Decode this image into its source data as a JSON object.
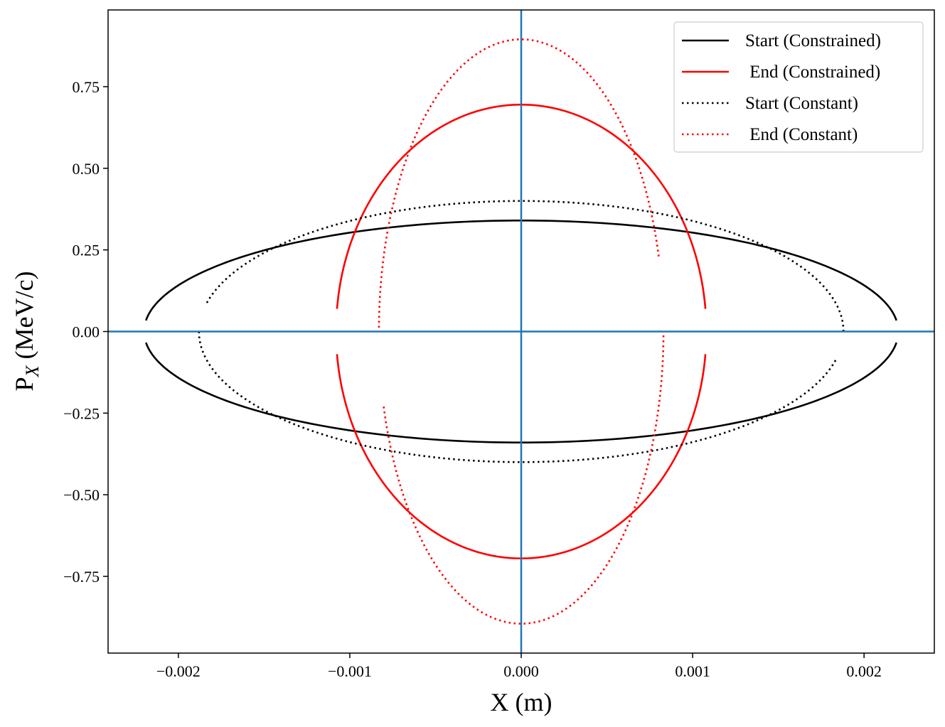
{
  "chart_data": {
    "type": "line",
    "title": "",
    "xlabel": "X (m)",
    "ylabel_main": "P",
    "ylabel_sub": "X",
    "ylabel_rest": " (MeV/c)",
    "xlim": [
      -0.00241,
      0.00241
    ],
    "ylim": [
      -0.985,
      0.985
    ],
    "x_ticks": [
      -0.002,
      -0.001,
      0.0,
      0.001,
      0.002
    ],
    "x_tick_labels": [
      "−0.002",
      "−0.001",
      "0.000",
      "0.001",
      "0.002"
    ],
    "y_ticks": [
      -0.75,
      -0.5,
      -0.25,
      0.0,
      0.25,
      0.5,
      0.75
    ],
    "y_tick_labels": [
      "−0.75",
      "−0.50",
      "−0.25",
      "0.00",
      "0.25",
      "0.50",
      "0.75"
    ],
    "grid": false,
    "legend_position": "top-right",
    "reference_lines": {
      "x": 0,
      "y": 0,
      "color": "#1f77b4"
    },
    "series": [
      {
        "name": "Start (Constrained)",
        "color": "#000000",
        "style": "solid",
        "ellipse": {
          "cx": 0.0,
          "cy": 0.0,
          "a": 0.0022,
          "b": 0.34,
          "tilt": 0.0
        },
        "arcs": [
          {
            "from": -0.1,
            "to": 0.1,
            "half": "upper"
          },
          {
            "from": -0.1,
            "to": 0.1,
            "half": "lower"
          }
        ],
        "values_summary": "x range -0.0022..0.0022, Px range -0.34..0.34"
      },
      {
        "name": " End (Constrained)",
        "color": "#ff0000",
        "style": "solid",
        "ellipse": {
          "cx": 0.0,
          "cy": 0.0,
          "a": 0.00108,
          "b": 0.695,
          "tilt": 0.0
        },
        "arcs": [
          {
            "from": -0.1,
            "to": 0.1,
            "half": "upper"
          },
          {
            "from": -0.1,
            "to": 0.1,
            "half": "lower"
          }
        ],
        "values_summary": "x range -0.00108..0.00108, Px range -0.695..0.695"
      },
      {
        "name": "Start (Constant)",
        "color": "#000000",
        "style": "dotted",
        "ellipse": {
          "cx": 0.0,
          "cy": 0.0,
          "a": 0.00188,
          "b": 0.4,
          "tilt": -0.1
        },
        "arcs": [
          {
            "from": 0.1,
            "to": 0.1,
            "half": "upper-tilted"
          },
          {
            "from": -0.1,
            "to": -0.1,
            "half": "lower-tilted"
          }
        ],
        "values_summary": "x range -0.00188..0.00188, Px range -0.4..0.4"
      },
      {
        "name": " End (Constant)",
        "color": "#ff0000",
        "style": "dotted",
        "ellipse": {
          "cx": 0.0,
          "cy": 0.0,
          "a": 0.00083,
          "b": 0.895,
          "tilt": 0.21
        },
        "arcs": [
          {
            "from": 0.05,
            "to": 0.21,
            "half": "upper-tilted"
          },
          {
            "from": -0.21,
            "to": -0.05,
            "half": "lower-tilted"
          }
        ],
        "values_summary": "x range -0.00083..0.00083, Px range -0.895..0.895"
      }
    ]
  }
}
